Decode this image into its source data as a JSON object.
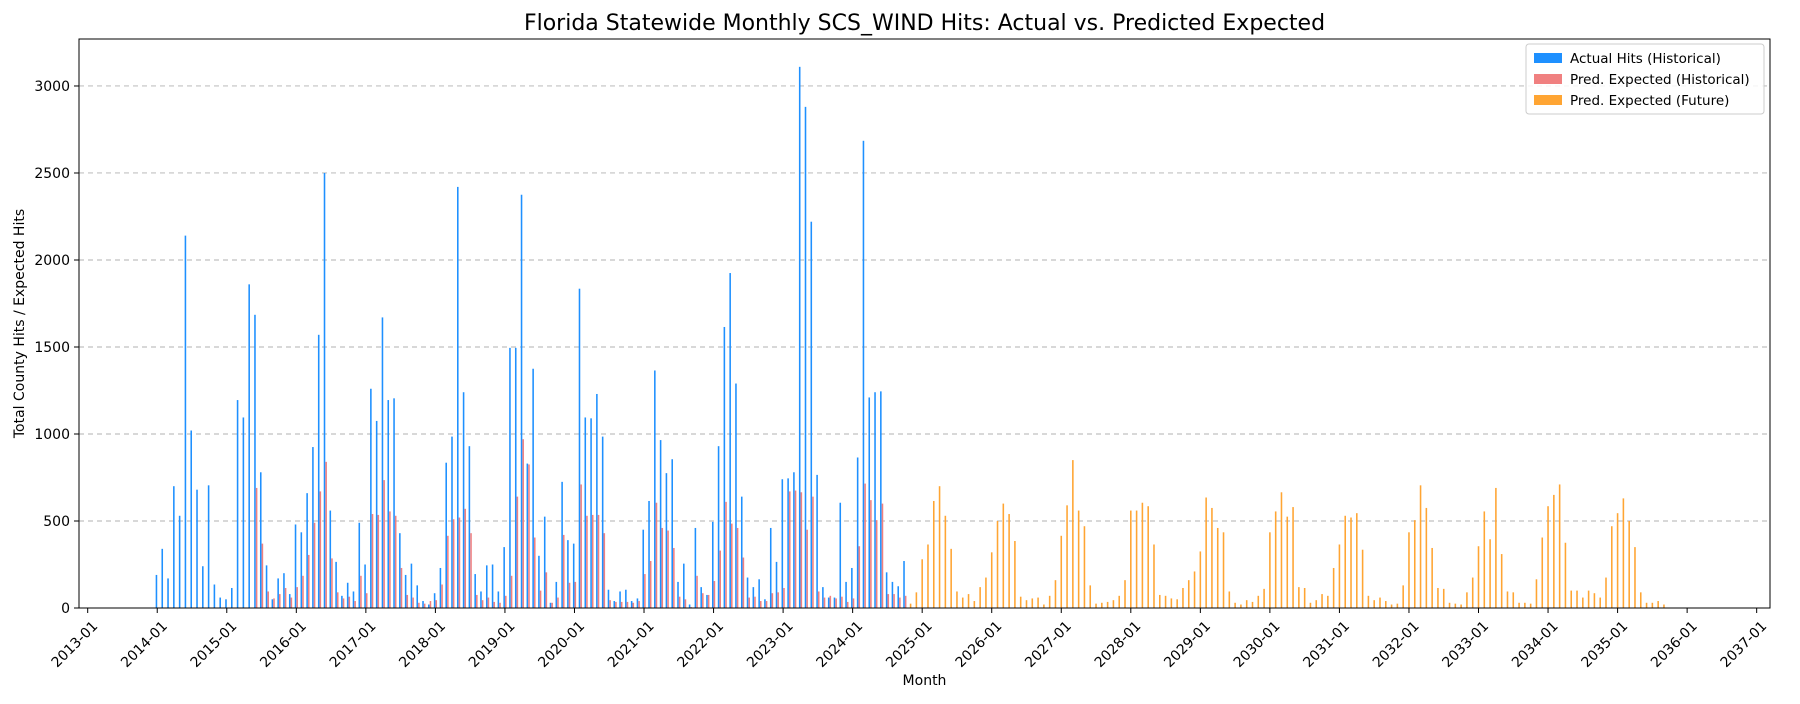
{
  "chart_data": {
    "type": "bar",
    "title": "Florida Statewide Monthly SCS_WIND Hits: Actual vs. Predicted Expected",
    "xlabel": "Month",
    "ylabel": "Total County Hits / Expected Hits",
    "ylim": [
      0,
      3270
    ],
    "y_ticks": [
      0,
      500,
      1000,
      1500,
      2000,
      2500,
      3000
    ],
    "x_ticks": [
      "2013-01",
      "2014-01",
      "2015-01",
      "2016-01",
      "2017-01",
      "2018-01",
      "2019-01",
      "2020-01",
      "2021-01",
      "2022-01",
      "2023-01",
      "2024-01",
      "2025-01",
      "2026-01",
      "2027-01",
      "2028-01",
      "2029-01",
      "2030-01",
      "2031-01",
      "2032-01",
      "2033-01",
      "2034-01",
      "2035-01",
      "2036-01",
      "2037-01"
    ],
    "grid": "y-dashed",
    "legend_position": "top-right",
    "historical_start": "2013-01",
    "future_start": "2024-10",
    "colors": {
      "actual": "#1e90ff",
      "pred_hist": "#f08080",
      "pred_future": "#ffa533"
    },
    "series": [
      {
        "name": "Actual Hits (Historical)",
        "values": [
          0,
          0,
          0,
          0,
          0,
          0,
          0,
          0,
          0,
          0,
          0,
          0,
          190,
          340,
          170,
          700,
          530,
          2140,
          1020,
          680,
          240,
          705,
          135,
          60,
          50,
          115,
          1195,
          1095,
          1860,
          1685,
          780,
          245,
          50,
          170,
          200,
          80,
          480,
          435,
          660,
          925,
          1570,
          2500,
          560,
          265,
          70,
          145,
          95,
          490,
          250,
          1260,
          1075,
          1670,
          1195,
          1205,
          430,
          190,
          255,
          130,
          40,
          20,
          85,
          230,
          835,
          985,
          2420,
          1240,
          930,
          195,
          95,
          245,
          250,
          95,
          350,
          1495,
          1495,
          2375,
          830,
          1375,
          300,
          525,
          30,
          150,
          725,
          390,
          370,
          1835,
          1095,
          1090,
          1230,
          985,
          105,
          40,
          95,
          105,
          40,
          55,
          450,
          615,
          1365,
          965,
          775,
          855,
          150,
          255,
          20,
          460,
          120,
          75,
          495,
          930,
          1615,
          1925,
          1290,
          640,
          175,
          120,
          165,
          50,
          460,
          265,
          740,
          745,
          780,
          3110,
          2880,
          2220,
          765,
          120,
          60,
          60,
          605,
          150,
          230,
          865,
          2685,
          1210,
          1240,
          1245,
          205,
          150,
          125,
          270
        ]
      },
      {
        "name": "Pred. Expected (Historical)",
        "values": [
          0,
          0,
          0,
          0,
          0,
          0,
          0,
          0,
          0,
          0,
          0,
          0,
          0,
          0,
          0,
          0,
          0,
          0,
          0,
          0,
          0,
          0,
          0,
          0,
          0,
          0,
          0,
          0,
          0,
          690,
          370,
          95,
          55,
          80,
          115,
          60,
          120,
          185,
          305,
          490,
          670,
          840,
          285,
          90,
          55,
          65,
          40,
          185,
          85,
          540,
          535,
          735,
          555,
          530,
          230,
          75,
          60,
          30,
          25,
          40,
          45,
          135,
          415,
          510,
          520,
          570,
          430,
          75,
          45,
          60,
          35,
          30,
          70,
          185,
          640,
          970,
          825,
          405,
          100,
          205,
          30,
          60,
          420,
          145,
          150,
          710,
          530,
          535,
          535,
          430,
          45,
          35,
          35,
          35,
          30,
          40,
          195,
          270,
          605,
          460,
          445,
          345,
          65,
          50,
          5,
          185,
          85,
          75,
          155,
          330,
          610,
          485,
          460,
          290,
          60,
          65,
          40,
          40,
          85,
          90,
          115,
          670,
          675,
          665,
          450,
          640,
          95,
          60,
          70,
          55,
          65,
          35,
          55,
          355,
          715,
          620,
          505,
          600,
          80,
          80,
          60,
          70
        ]
      },
      {
        "name": "Pred. Expected (Future)",
        "values": [
          0,
          0,
          0,
          0,
          0,
          0,
          0,
          0,
          0,
          0,
          0,
          0,
          0,
          0,
          0,
          0,
          0,
          0,
          0,
          0,
          0,
          0,
          0,
          0,
          0,
          0,
          0,
          0,
          0,
          0,
          0,
          0,
          0,
          0,
          0,
          0,
          0,
          0,
          0,
          0,
          0,
          0,
          0,
          0,
          0,
          0,
          0,
          0,
          0,
          0,
          0,
          0,
          0,
          0,
          0,
          0,
          0,
          0,
          0,
          0,
          0,
          0,
          0,
          0,
          0,
          0,
          0,
          0,
          0,
          0,
          0,
          0,
          0,
          0,
          0,
          0,
          0,
          0,
          0,
          0,
          0,
          0,
          0,
          0,
          0,
          0,
          0,
          0,
          0,
          0,
          0,
          0,
          0,
          0,
          0,
          0,
          0,
          0,
          0,
          0,
          0,
          0,
          0,
          0,
          0,
          0,
          0,
          0,
          0,
          0,
          0,
          0,
          0,
          0,
          0,
          0,
          0,
          0,
          0,
          0,
          0,
          0,
          0,
          0,
          0,
          0,
          0,
          0,
          0,
          0,
          0,
          0,
          0,
          0,
          0,
          0,
          0,
          0,
          0,
          0,
          0,
          0,
          25,
          90,
          280,
          365,
          615,
          700,
          530,
          340,
          95,
          60,
          80,
          40,
          120,
          175,
          320,
          500,
          600,
          540,
          385,
          65,
          45,
          55,
          60,
          20,
          70,
          160,
          415,
          590,
          850,
          560,
          470,
          130,
          25,
          30,
          35,
          45,
          70,
          160,
          560,
          560,
          605,
          585,
          365,
          75,
          70,
          55,
          50,
          115,
          160,
          210,
          325,
          635,
          575,
          460,
          435,
          95,
          30,
          20,
          45,
          35,
          70,
          110,
          435,
          555,
          665,
          525,
          580,
          120,
          115,
          30,
          45,
          80,
          70,
          230,
          365,
          530,
          520,
          545,
          335,
          70,
          45,
          60,
          40,
          20,
          25,
          130,
          435,
          505,
          705,
          575,
          345,
          115,
          110,
          30,
          25,
          20,
          90,
          175,
          355,
          555,
          395,
          690,
          310,
          95,
          90,
          30,
          30,
          25,
          165,
          405,
          585,
          650,
          710,
          375,
          100,
          100,
          60,
          100,
          85,
          60,
          175,
          470,
          545,
          630,
          500,
          350,
          90,
          30,
          30,
          40,
          20,
          0,
          0,
          0,
          0,
          0,
          0,
          0,
          0,
          0,
          0,
          0,
          0,
          0,
          0,
          0
        ]
      }
    ]
  }
}
